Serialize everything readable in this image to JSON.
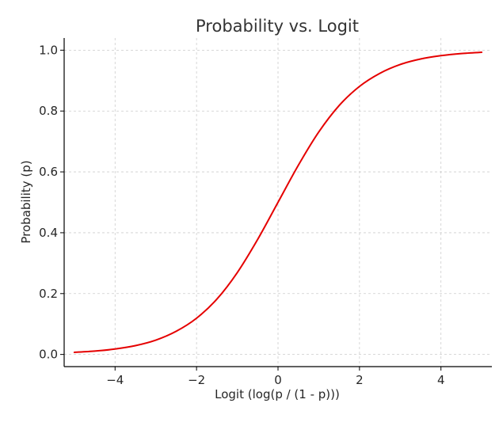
{
  "chart_data": {
    "type": "line",
    "title": "Probability vs. Logit",
    "xlabel": "Logit (log(p / (1 - p)))",
    "ylabel": "Probability (p)",
    "xlim": [
      -5.25,
      5.25
    ],
    "ylim": [
      -0.04,
      1.04
    ],
    "x_ticks": [
      -4,
      -2,
      0,
      2,
      4
    ],
    "x_tick_labels": [
      "−4",
      "−2",
      "0",
      "2",
      "4"
    ],
    "y_ticks": [
      0.0,
      0.2,
      0.4,
      0.6,
      0.8,
      1.0
    ],
    "y_tick_labels": [
      "0.0",
      "0.2",
      "0.4",
      "0.6",
      "0.8",
      "1.0"
    ],
    "grid": true,
    "series": [
      {
        "color": "#e50000",
        "x": [
          -5.0,
          -4.5,
          -4.0,
          -3.5,
          -3.0,
          -2.5,
          -2.0,
          -1.5,
          -1.0,
          -0.5,
          0.0,
          0.5,
          1.0,
          1.5,
          2.0,
          2.5,
          3.0,
          3.5,
          4.0,
          4.5,
          5.0
        ],
        "y": [
          0.007,
          0.011,
          0.018,
          0.029,
          0.047,
          0.076,
          0.119,
          0.182,
          0.269,
          0.378,
          0.5,
          0.622,
          0.731,
          0.818,
          0.881,
          0.924,
          0.953,
          0.971,
          0.982,
          0.989,
          0.993
        ]
      }
    ]
  }
}
